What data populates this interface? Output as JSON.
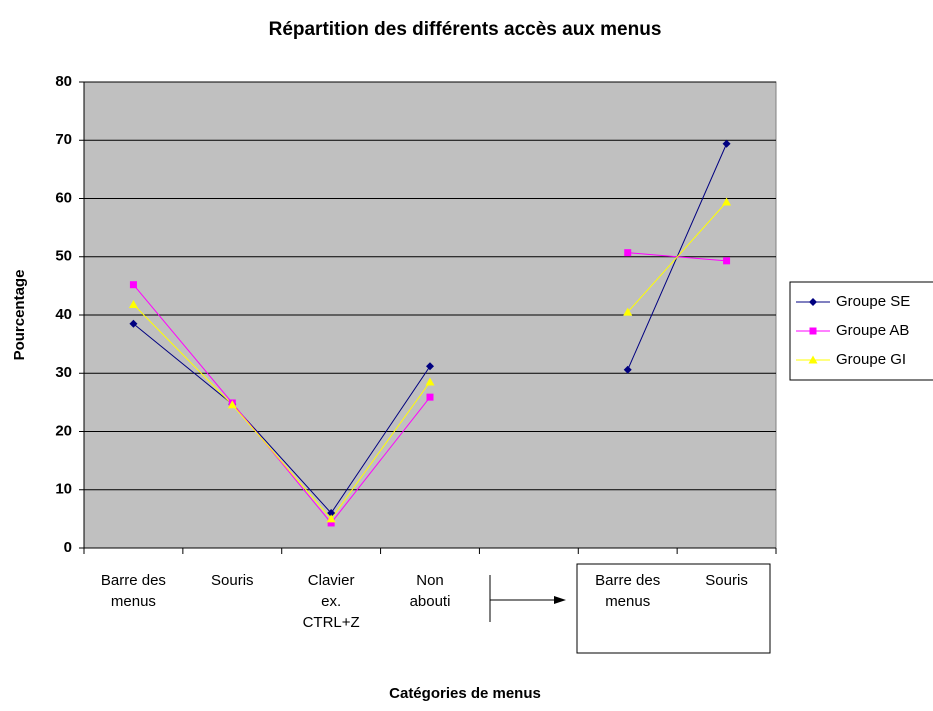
{
  "chart_data": {
    "type": "line",
    "title": "Répartition des différents accès aux menus",
    "x_label": "Catégories de menus",
    "y_label": "Pourcentage",
    "categories": [
      "Barre des menus",
      "Souris",
      "Clavier ex. CTRL+Z",
      "Non abouti",
      null,
      "Barre des menus",
      "Souris"
    ],
    "series": [
      {
        "name": "Groupe SE",
        "color": "#000080",
        "marker": "diamond",
        "values": [
          38.5,
          24.7,
          6,
          31.2,
          null,
          30.6,
          69.4
        ]
      },
      {
        "name": "Groupe AB",
        "color": "#ff00ff",
        "marker": "square",
        "values": [
          45.2,
          24.9,
          4.3,
          25.9,
          null,
          50.7,
          49.3
        ]
      },
      {
        "name": "Groupe GI",
        "color": "#ffff00",
        "marker": "triangle",
        "values": [
          41.8,
          24.6,
          5,
          28.5,
          null,
          40.5,
          59.4
        ]
      }
    ],
    "ylim": [
      0,
      80
    ],
    "yticks": [
      0,
      10,
      20,
      30,
      40,
      50,
      60,
      70,
      80
    ],
    "grid": true,
    "legend": "right"
  }
}
